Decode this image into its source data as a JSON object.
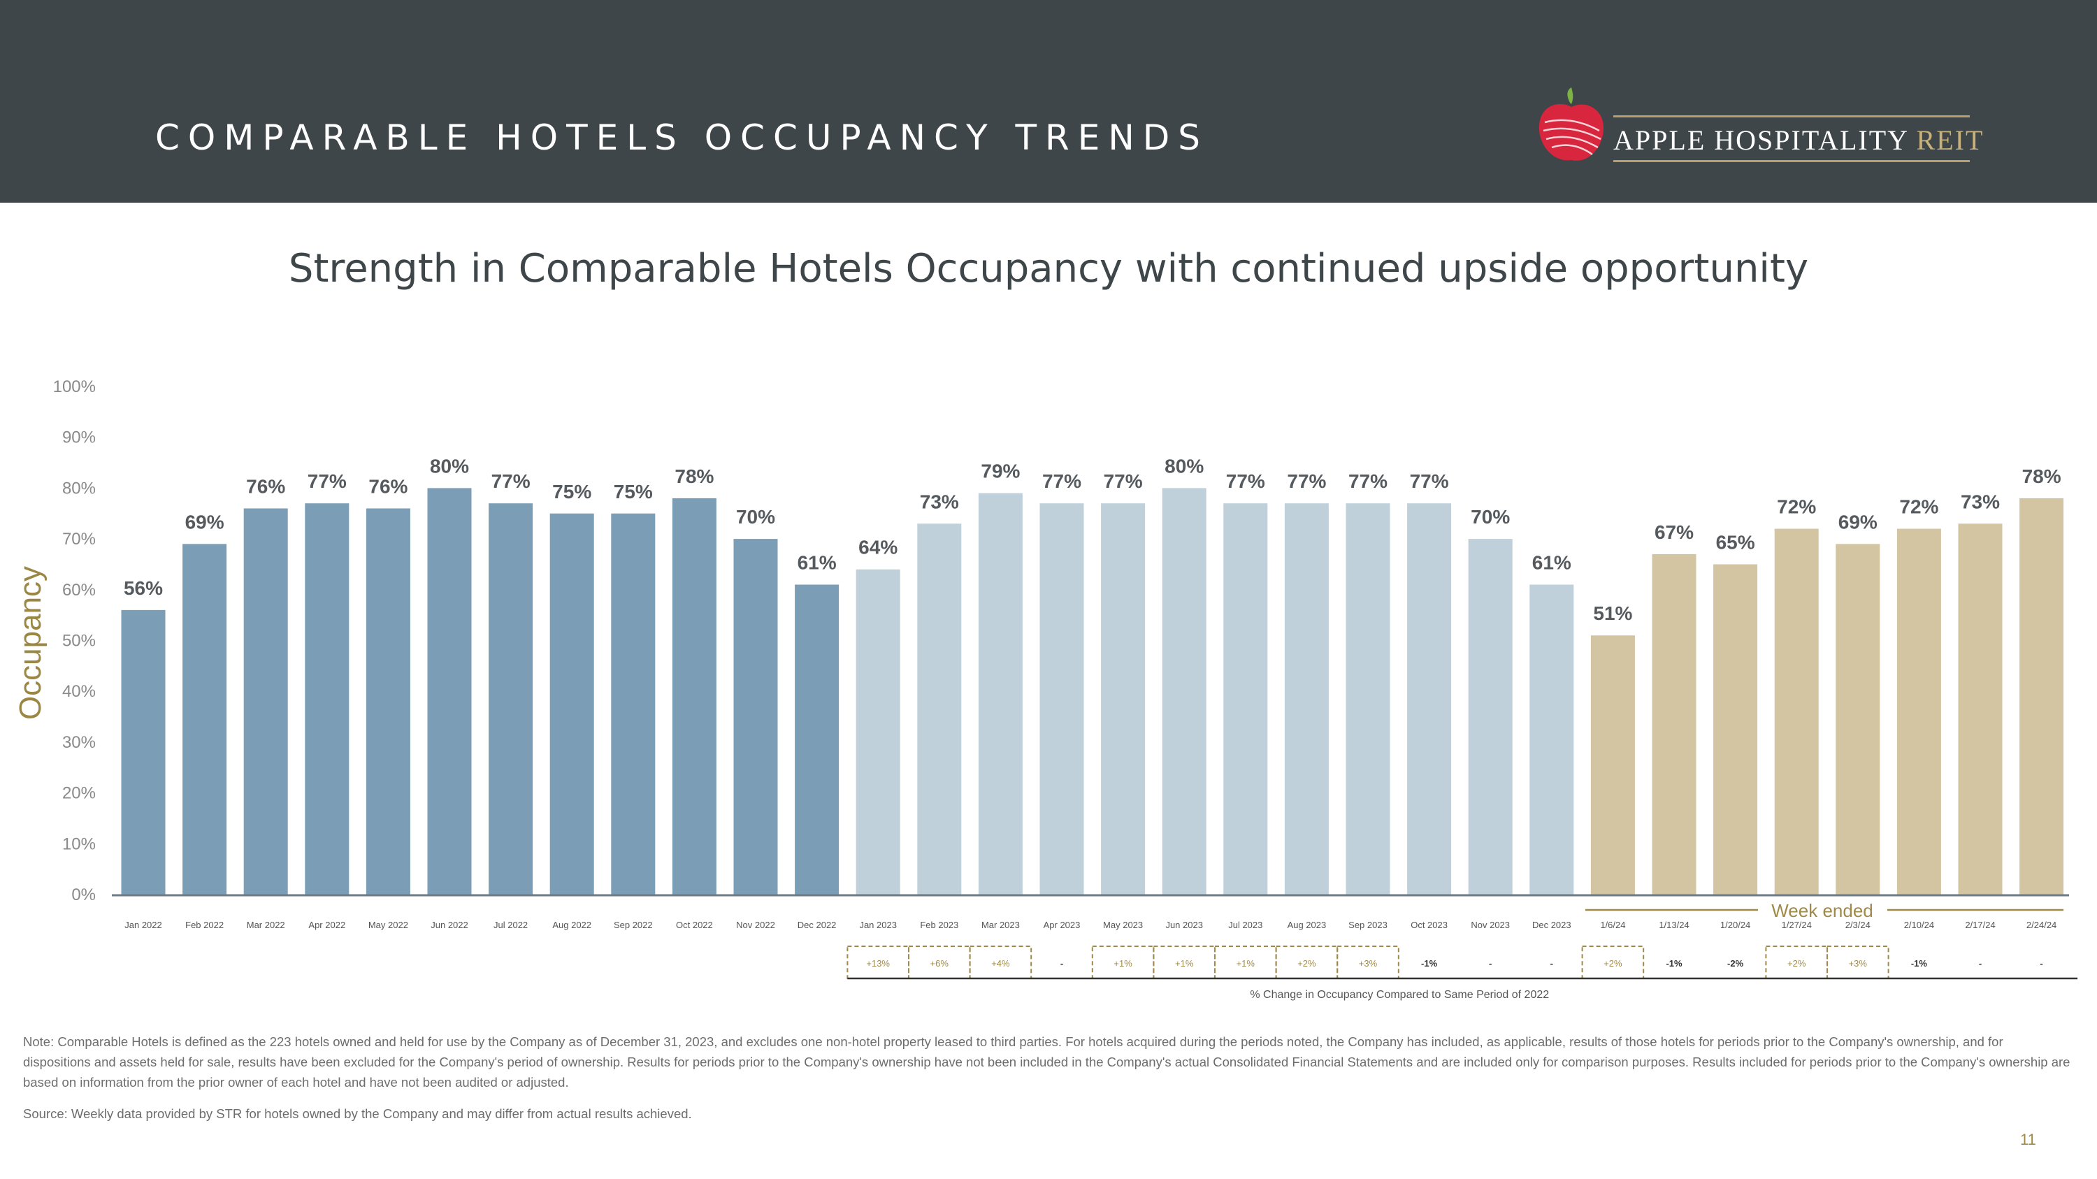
{
  "header": {
    "title": "COMPARABLE HOTELS OCCUPANCY TRENDS",
    "logo_main": "APPLE HOSPITALITY ",
    "logo_reit": "REIT"
  },
  "subtitle": "Strength in Comparable Hotels Occupancy with continued upside opportunity",
  "chart_data": {
    "type": "bar",
    "ylabel": "Occupancy",
    "ylim": [
      0,
      100
    ],
    "yticks": [
      "0%",
      "10%",
      "20%",
      "30%",
      "40%",
      "50%",
      "60%",
      "70%",
      "80%",
      "90%",
      "100%"
    ],
    "grid": false,
    "categories": [
      "Jan 2022",
      "Feb 2022",
      "Mar 2022",
      "Apr 2022",
      "May 2022",
      "Jun 2022",
      "Jul 2022",
      "Aug 2022",
      "Sep 2022",
      "Oct 2022",
      "Nov 2022",
      "Dec 2022",
      "Jan 2023",
      "Feb 2023",
      "Mar 2023",
      "Apr 2023",
      "May 2023",
      "Jun 2023",
      "Jul 2023",
      "Aug 2023",
      "Sep 2023",
      "Oct 2023",
      "Nov 2023",
      "Dec 2023",
      "1/6/24",
      "1/13/24",
      "1/20/24",
      "1/27/24",
      "2/3/24",
      "2/10/24",
      "2/17/24",
      "2/24/24"
    ],
    "values": [
      56,
      69,
      76,
      77,
      76,
      80,
      77,
      75,
      75,
      78,
      70,
      61,
      64,
      73,
      79,
      77,
      77,
      80,
      77,
      77,
      77,
      77,
      70,
      61,
      51,
      67,
      65,
      72,
      69,
      72,
      73,
      78
    ],
    "value_labels": [
      "56%",
      "69%",
      "76%",
      "77%",
      "76%",
      "80%",
      "77%",
      "75%",
      "75%",
      "78%",
      "70%",
      "61%",
      "64%",
      "73%",
      "79%",
      "77%",
      "77%",
      "80%",
      "77%",
      "77%",
      "77%",
      "77%",
      "70%",
      "61%",
      "51%",
      "67%",
      "65%",
      "72%",
      "69%",
      "72%",
      "73%",
      "78%"
    ],
    "groups": [
      {
        "from": 0,
        "to": 11,
        "color": "#7b9db5"
      },
      {
        "from": 12,
        "to": 23,
        "color": "#bfd0db"
      },
      {
        "from": 24,
        "to": 31,
        "color": "#d3c5a1"
      }
    ],
    "week_label": "Week ended",
    "changes": {
      "start_index": 12,
      "values": [
        "+13%",
        "+6%",
        "+4%",
        "-",
        "+1%",
        "+1%",
        "+1%",
        "+2%",
        "+3%",
        "-1%",
        "-",
        "-",
        "+2%",
        "-1%",
        "-2%",
        "+2%",
        "+3%",
        "-1%",
        "-",
        "-"
      ],
      "boxed": [
        true,
        true,
        true,
        false,
        true,
        true,
        true,
        true,
        true,
        false,
        false,
        false,
        true,
        false,
        false,
        true,
        true,
        false,
        false,
        false
      ],
      "caption": "% Change in Occupancy Compared to Same Period of 2022"
    },
    "colors": {
      "axis": "#6e7b86",
      "tick_text": "#8a8a8a",
      "value_text": "#555a5f",
      "ylabel": "#9b8744",
      "gold": "#a08a4a",
      "box": "#a08a4a"
    }
  },
  "note": "Note:  Comparable Hotels is defined as the 223 hotels owned and held for use by the Company as of December 31, 2023, and excludes one non-hotel property leased to third parties. For hotels acquired during the periods noted, the Company has included, as applicable, results of those hotels for periods prior to the Company's ownership, and for dispositions and assets held for sale, results have been excluded for the Company's period of ownership. Results for periods prior to the Company's ownership have not been included in the Company's actual Consolidated Financial Statements and are included only for comparison purposes. Results included for periods prior to the Company's ownership are based on information from the prior owner of each hotel and have not been audited or adjusted.",
  "source": "Source:  Weekly data provided by STR for hotels owned by the Company and may differ from actual results achieved.",
  "page_number": "11"
}
